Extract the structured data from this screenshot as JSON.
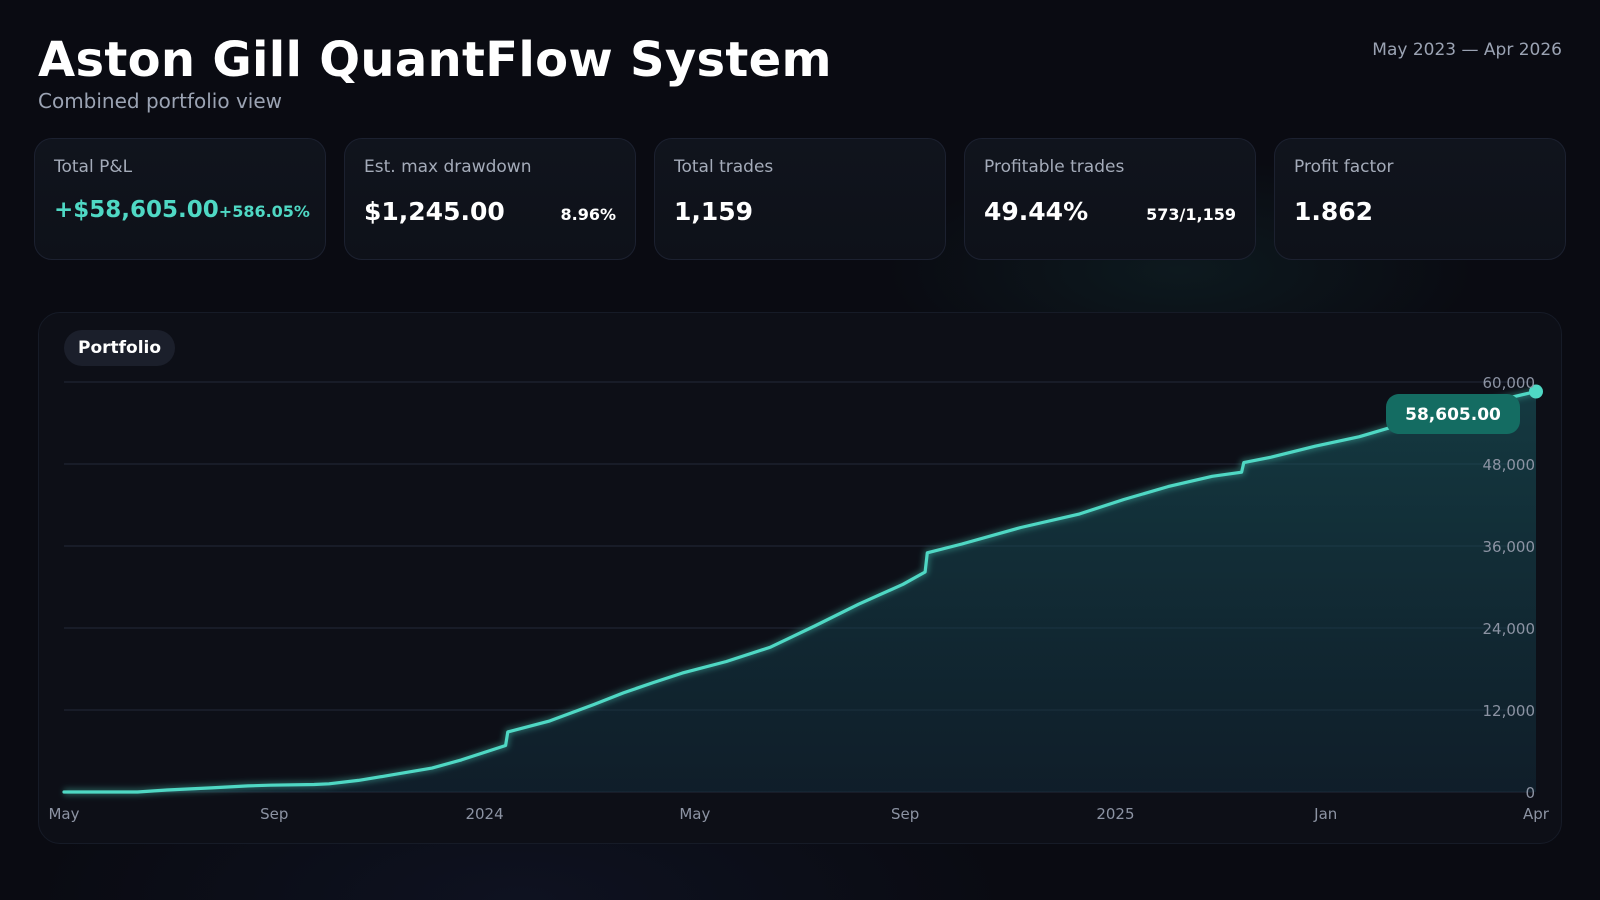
{
  "header": {
    "title": "Aston Gill QuantFlow System",
    "subtitle": "Combined portfolio view",
    "date_range": "May 2023 — Apr 2026"
  },
  "kpis": [
    {
      "label": "Total P&L",
      "value": "+$58,605.00",
      "sub": "+586.05%",
      "positive": true
    },
    {
      "label": "Est. max drawdown",
      "value": "$1,245.00",
      "sub": "8.96%",
      "positive": false
    },
    {
      "label": "Total trades",
      "value": "1,159",
      "sub": "",
      "positive": false
    },
    {
      "label": "Profitable trades",
      "value": "49.44%",
      "sub": "573/1,159",
      "positive": false
    },
    {
      "label": "Profit factor",
      "value": "1.862",
      "sub": "",
      "positive": false
    }
  ],
  "colors": {
    "accent": "#4fd8c4",
    "callout_bg": "#146c62",
    "background": "#0a0b12"
  },
  "chart_data": {
    "type": "area",
    "series": [
      {
        "name": "Portfolio",
        "color": "#4fd8c4"
      }
    ],
    "x_ticks": [
      "May",
      "Sep",
      "2024",
      "May",
      "Sep",
      "2025",
      "Jan",
      "Apr"
    ],
    "y_ticks": [
      "0",
      "12,000",
      "24,000",
      "36,000",
      "48,000",
      "60,000"
    ],
    "ylim": [
      0,
      60000
    ],
    "points": [
      [
        0.0,
        0
      ],
      [
        0.05,
        0
      ],
      [
        0.07,
        300
      ],
      [
        0.1,
        600
      ],
      [
        0.125,
        900
      ],
      [
        0.14,
        1000
      ],
      [
        0.17,
        1100
      ],
      [
        0.18,
        1200
      ],
      [
        0.2,
        1700
      ],
      [
        0.22,
        2400
      ],
      [
        0.25,
        3500
      ],
      [
        0.27,
        4700
      ],
      [
        0.3,
        6800
      ],
      [
        0.3015,
        8800
      ],
      [
        0.33,
        10400
      ],
      [
        0.36,
        12800
      ],
      [
        0.38,
        14500
      ],
      [
        0.4,
        16000
      ],
      [
        0.42,
        17400
      ],
      [
        0.45,
        19100
      ],
      [
        0.48,
        21200
      ],
      [
        0.51,
        24300
      ],
      [
        0.54,
        27500
      ],
      [
        0.57,
        30400
      ],
      [
        0.585,
        32200
      ],
      [
        0.5865,
        35000
      ],
      [
        0.61,
        36300
      ],
      [
        0.65,
        38700
      ],
      [
        0.69,
        40700
      ],
      [
        0.72,
        42800
      ],
      [
        0.75,
        44700
      ],
      [
        0.78,
        46200
      ],
      [
        0.8,
        46800
      ],
      [
        0.8015,
        48200
      ],
      [
        0.82,
        49000
      ],
      [
        0.85,
        50600
      ],
      [
        0.88,
        52000
      ],
      [
        0.91,
        53900
      ],
      [
        0.94,
        55600
      ],
      [
        0.97,
        57100
      ],
      [
        1.0,
        58605
      ]
    ],
    "last_value_label": "58,605.00",
    "grid": true,
    "legend_position": "top-left"
  }
}
